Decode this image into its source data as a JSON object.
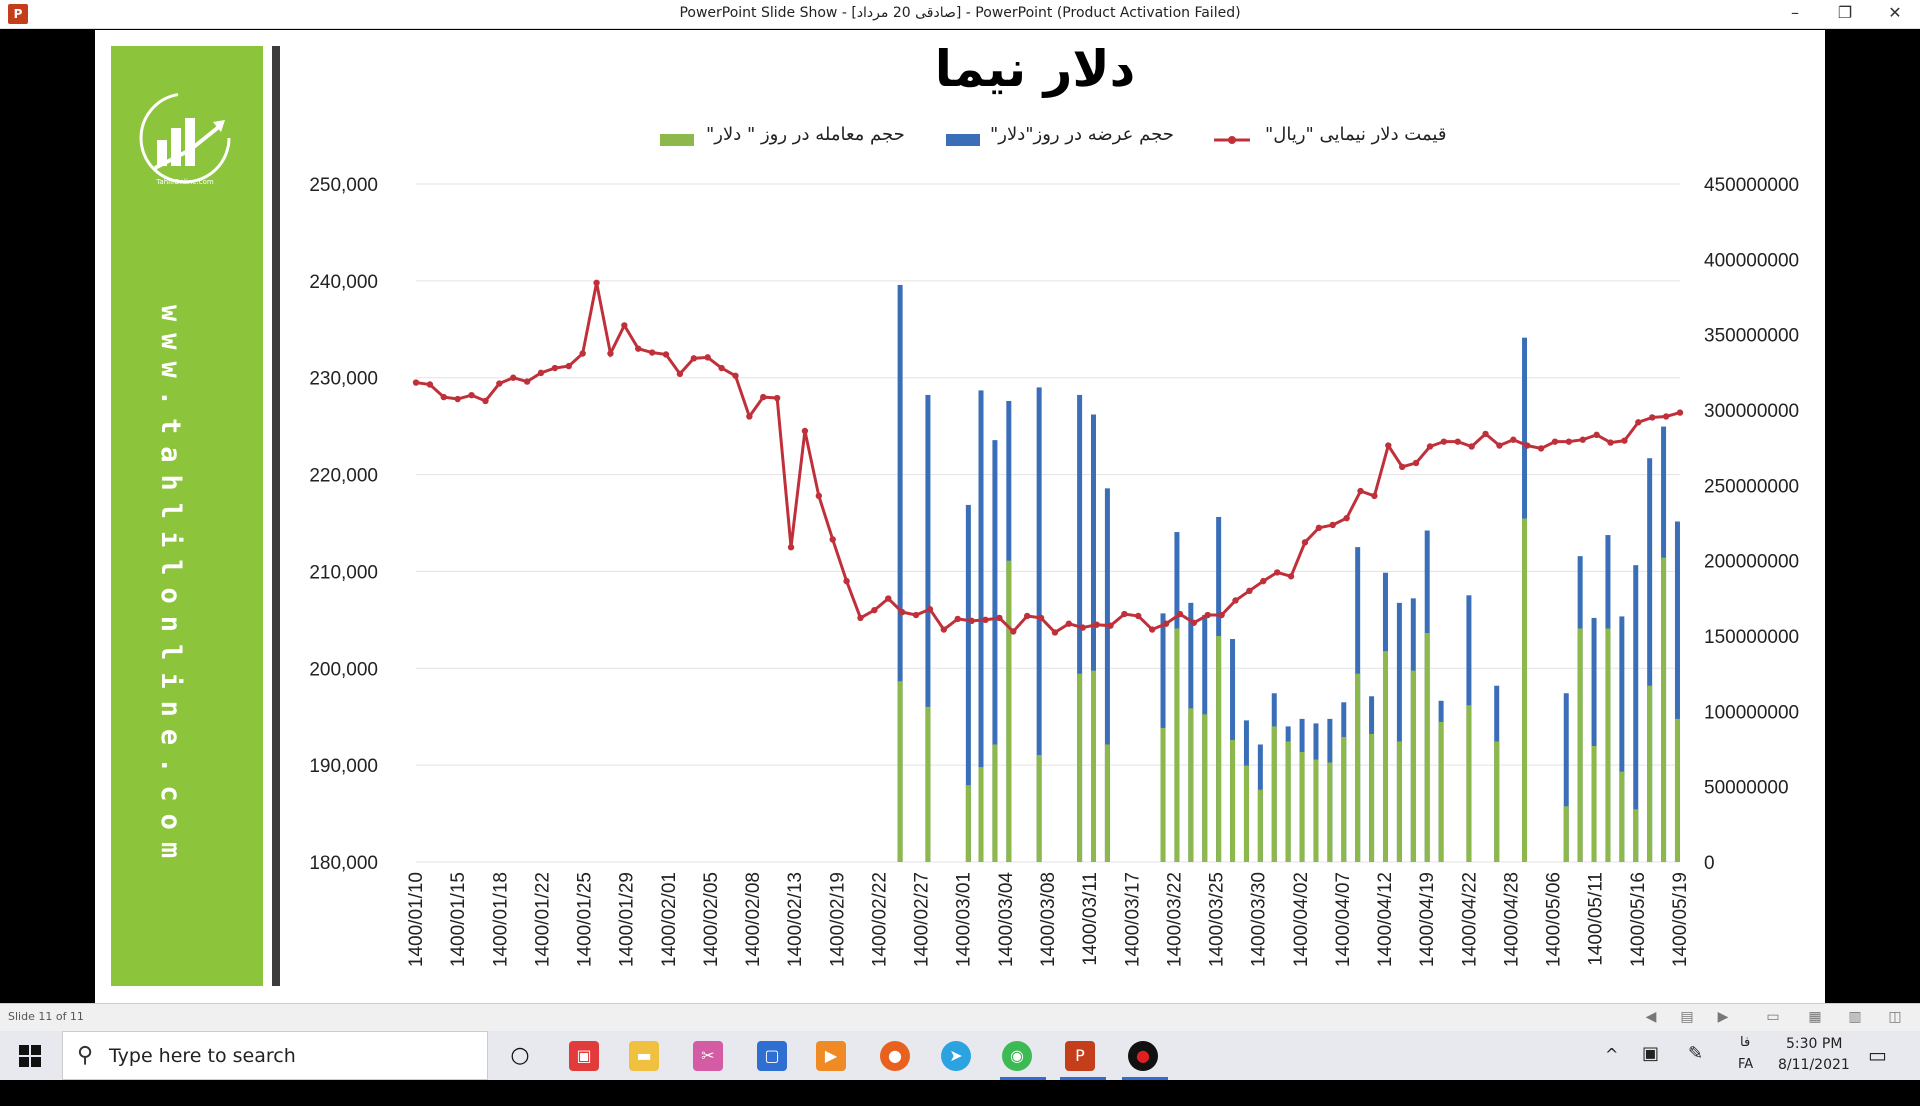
{
  "window": {
    "title": "PowerPoint Slide Show - [صادقی 20 مرداد] - PowerPoint (Product Activation Failed)",
    "app_icon": "P",
    "minimize": "–",
    "restore": "❐",
    "close": "✕"
  },
  "sidebar": {
    "logo_text": "TahlilOnline.com",
    "url": "www.tahlilonline.com",
    "color": "#8cc43c"
  },
  "chart_data": {
    "type": "bar",
    "title": "دلار نیما",
    "legend": {
      "line": "قیمت دلار نیمایی \"ریال\"",
      "supply": "حجم عرضه در روز\"دلار\"",
      "trade": "حجم معامله در روز \" دلار\""
    },
    "colors": {
      "line": "#c0303a",
      "supply": "#3a6fb8",
      "trade": "#8db84c"
    },
    "y_left": {
      "ticks": [
        "250,000",
        "240,000",
        "230,000",
        "220,000",
        "210,000",
        "200,000",
        "190,000",
        "180,000"
      ],
      "min": 180000,
      "max": 250000
    },
    "y_right": {
      "ticks": [
        "450000000",
        "400000000",
        "350000000",
        "300000000",
        "250000000",
        "200000000",
        "150000000",
        "100000000",
        "50000000",
        "0"
      ],
      "min": 0,
      "max": 450000000
    },
    "x_tick_labels": [
      "1400/01/10",
      "1400/01/15",
      "1400/01/18",
      "1400/01/22",
      "1400/01/25",
      "1400/01/29",
      "1400/02/01",
      "1400/02/05",
      "1400/02/08",
      "1400/02/13",
      "1400/02/19",
      "1400/02/22",
      "1400/02/27",
      "1400/03/01",
      "1400/03/04",
      "1400/03/08",
      "1400/03/11",
      "1400/03/17",
      "1400/03/22",
      "1400/03/25",
      "1400/03/30",
      "1400/04/02",
      "1400/04/07",
      "1400/04/12",
      "1400/04/19",
      "1400/04/22",
      "1400/04/28",
      "1400/05/06",
      "1400/05/11",
      "1400/05/16",
      "1400/05/19"
    ],
    "price_series": [
      229500,
      229300,
      228000,
      227800,
      228200,
      227600,
      229400,
      230000,
      229600,
      230500,
      231000,
      231200,
      232500,
      239800,
      232500,
      235400,
      233000,
      232600,
      232400,
      230400,
      232000,
      232100,
      231000,
      230200,
      226000,
      228000,
      227900,
      212500,
      224500,
      217800,
      213300,
      209000,
      205200,
      206000,
      207200,
      205800,
      205500,
      206100,
      204000,
      205100,
      204900,
      205000,
      205200,
      203800,
      205400,
      205200,
      203700,
      204600,
      204200,
      204500,
      204400,
      205600,
      205400,
      204000,
      204600,
      205600,
      204700,
      205500,
      205500,
      207000,
      208000,
      209000,
      209900,
      209500,
      213000,
      214500,
      214800,
      215500,
      218300,
      217800,
      223000,
      220800,
      221200,
      222900,
      223400,
      223400,
      222900,
      224200,
      223000,
      223600,
      223000,
      222700,
      223400,
      223400,
      223600,
      224100,
      223300,
      223500,
      225400,
      225900,
      226000,
      226400
    ],
    "bars": [
      {
        "x": 0.383,
        "supply": 383000000,
        "trade": 120000000
      },
      {
        "x": 0.405,
        "supply": 310000000,
        "trade": 103000000
      },
      {
        "x": 0.437,
        "supply": 237000000,
        "trade": 51000000
      },
      {
        "x": 0.447,
        "supply": 313000000,
        "trade": 63000000
      },
      {
        "x": 0.458,
        "supply": 280000000,
        "trade": 78000000
      },
      {
        "x": 0.469,
        "supply": 306000000,
        "trade": 200000000
      },
      {
        "x": 0.493,
        "supply": 315000000,
        "trade": 71000000
      },
      {
        "x": 0.525,
        "supply": 310000000,
        "trade": 125000000
      },
      {
        "x": 0.536,
        "supply": 297000000,
        "trade": 127000000
      },
      {
        "x": 0.547,
        "supply": 248000000,
        "trade": 78000000
      },
      {
        "x": 0.591,
        "supply": 165000000,
        "trade": 89000000
      },
      {
        "x": 0.602,
        "supply": 219000000,
        "trade": 155000000
      },
      {
        "x": 0.613,
        "supply": 172000000,
        "trade": 102000000
      },
      {
        "x": 0.624,
        "supply": 164000000,
        "trade": 98000000
      },
      {
        "x": 0.635,
        "supply": 229000000,
        "trade": 150000000
      },
      {
        "x": 0.646,
        "supply": 148000000,
        "trade": 81000000
      },
      {
        "x": 0.657,
        "supply": 94000000,
        "trade": 64000000
      },
      {
        "x": 0.668,
        "supply": 78000000,
        "trade": 48000000
      },
      {
        "x": 0.679,
        "supply": 112000000,
        "trade": 90000000
      },
      {
        "x": 0.69,
        "supply": 90000000,
        "trade": 80000000
      },
      {
        "x": 0.701,
        "supply": 95000000,
        "trade": 73000000
      },
      {
        "x": 0.712,
        "supply": 92000000,
        "trade": 68000000
      },
      {
        "x": 0.723,
        "supply": 95000000,
        "trade": 66000000
      },
      {
        "x": 0.734,
        "supply": 106000000,
        "trade": 83000000
      },
      {
        "x": 0.745,
        "supply": 209000000,
        "trade": 125000000
      },
      {
        "x": 0.756,
        "supply": 110000000,
        "trade": 85000000
      },
      {
        "x": 0.767,
        "supply": 192000000,
        "trade": 140000000
      },
      {
        "x": 0.778,
        "supply": 172000000,
        "trade": 80000000
      },
      {
        "x": 0.789,
        "supply": 175000000,
        "trade": 127000000
      },
      {
        "x": 0.8,
        "supply": 220000000,
        "trade": 152000000
      },
      {
        "x": 0.811,
        "supply": 107000000,
        "trade": 93000000
      },
      {
        "x": 0.833,
        "supply": 177000000,
        "trade": 104000000
      },
      {
        "x": 0.855,
        "supply": 117000000,
        "trade": 80000000
      },
      {
        "x": 0.877,
        "supply": 348000000,
        "trade": 228000000
      },
      {
        "x": 0.91,
        "supply": 112000000,
        "trade": 37000000
      },
      {
        "x": 0.921,
        "supply": 203000000,
        "trade": 155000000
      },
      {
        "x": 0.932,
        "supply": 162000000,
        "trade": 77000000
      },
      {
        "x": 0.943,
        "supply": 217000000,
        "trade": 155000000
      },
      {
        "x": 0.954,
        "supply": 163000000,
        "trade": 60000000
      },
      {
        "x": 0.965,
        "supply": 197000000,
        "trade": 35000000
      },
      {
        "x": 0.976,
        "supply": 268000000,
        "trade": 117000000
      },
      {
        "x": 0.987,
        "supply": 289000000,
        "trade": 202000000
      },
      {
        "x": 0.998,
        "supply": 226000000,
        "trade": 95000000
      }
    ]
  },
  "status": {
    "slide_indicator": "Slide 11 of 11"
  },
  "taskbar": {
    "search_placeholder": "Type here to search",
    "time": "5:30 PM",
    "date": "8/11/2021",
    "lang": "FA",
    "lang_top": "فا"
  }
}
